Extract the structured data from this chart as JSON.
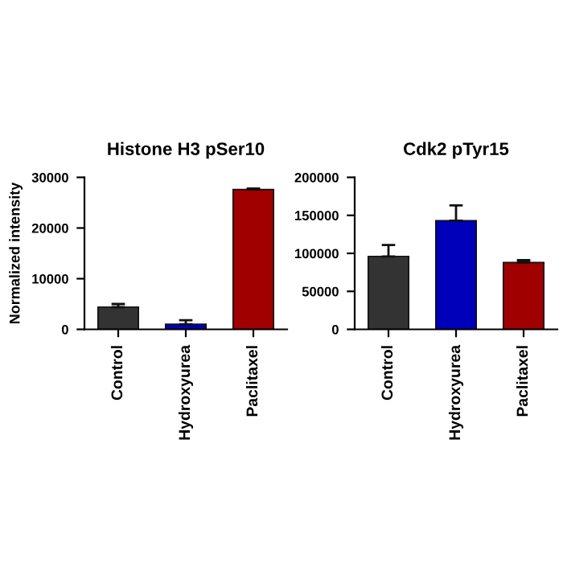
{
  "chart_data": [
    {
      "type": "bar",
      "title": "Histone H3 pSer10",
      "ylabel": "Normalized intensity",
      "categories": [
        "Control",
        "Hydroxyurea",
        "Paclitaxel"
      ],
      "values": [
        4400,
        1000,
        27600
      ],
      "colors": [
        "#333333",
        "#0000bb",
        "#a00000"
      ],
      "errors": [
        [
          4400,
          5000
        ],
        [
          1000,
          1800
        ],
        [
          27600,
          27800
        ]
      ],
      "ylim": [
        0,
        30000
      ],
      "yticks": [
        0,
        10000,
        20000,
        30000
      ],
      "grid": false
    },
    {
      "type": "bar",
      "title": "Cdk2 pTyr15",
      "categories": [
        "Control",
        "Hydroxyurea",
        "Paclitaxel"
      ],
      "values": [
        96000,
        143000,
        88000
      ],
      "colors": [
        "#333333",
        "#0000bb",
        "#a00000"
      ],
      "errors": [
        [
          96000,
          111000
        ],
        [
          143000,
          163000
        ],
        [
          88000,
          91000
        ]
      ],
      "ylim": [
        0,
        200000
      ],
      "yticks": [
        0,
        50000,
        100000,
        150000,
        200000
      ],
      "grid": false
    }
  ]
}
